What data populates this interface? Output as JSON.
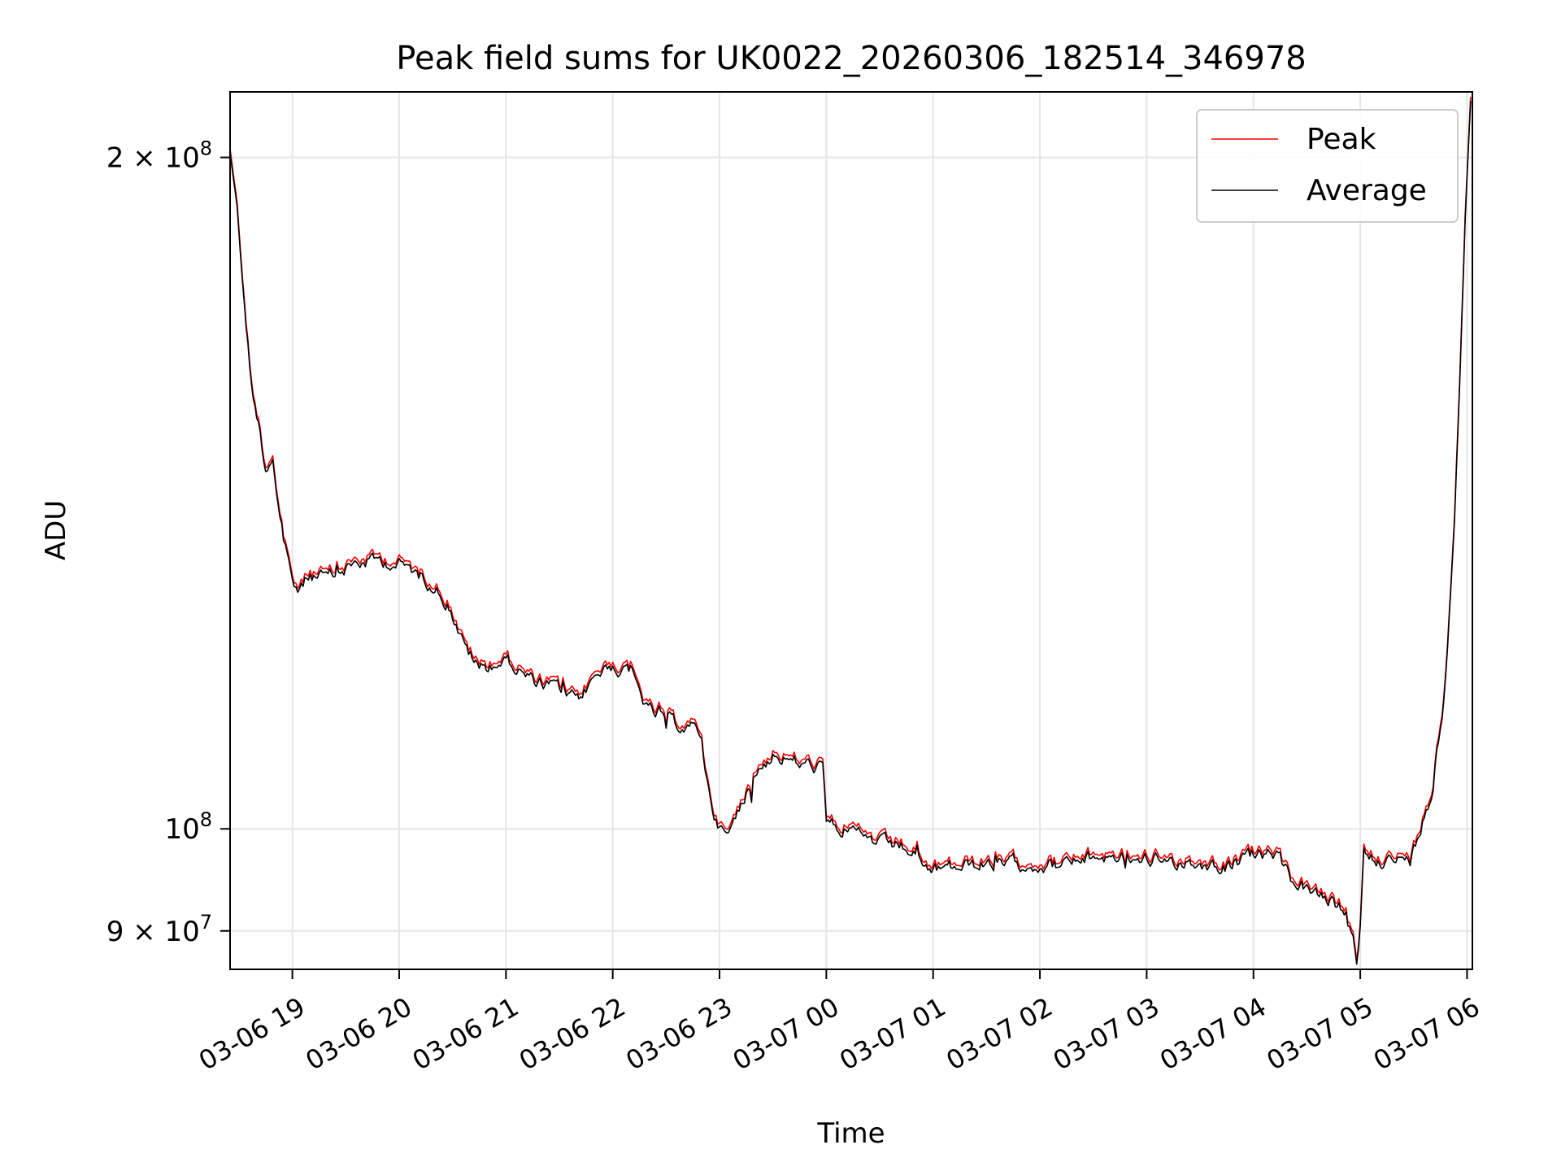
{
  "chart_data": {
    "type": "line",
    "title": "Peak field sums for UK0022_20260306_182514_346978",
    "xlabel": "Time",
    "ylabel": "ADU",
    "xlim": [
      "2026-03-06 18:25",
      "2026-03-07 06:03"
    ],
    "ylim": [
      86500000,
      214000000
    ],
    "yscale": "log",
    "grid": true,
    "legend": "upper right",
    "x_ticks": [
      {
        "t": "2026-03-06 19:00",
        "label": "03-06 19"
      },
      {
        "t": "2026-03-06 20:00",
        "label": "03-06 20"
      },
      {
        "t": "2026-03-06 21:00",
        "label": "03-06 21"
      },
      {
        "t": "2026-03-06 22:00",
        "label": "03-06 22"
      },
      {
        "t": "2026-03-06 23:00",
        "label": "03-06 23"
      },
      {
        "t": "2026-03-07 00:00",
        "label": "03-07 00"
      },
      {
        "t": "2026-03-07 01:00",
        "label": "03-07 01"
      },
      {
        "t": "2026-03-07 02:00",
        "label": "03-07 02"
      },
      {
        "t": "2026-03-07 03:00",
        "label": "03-07 03"
      },
      {
        "t": "2026-03-07 04:00",
        "label": "03-07 04"
      },
      {
        "t": "2026-03-07 05:00",
        "label": "03-07 05"
      },
      {
        "t": "2026-03-07 06:00",
        "label": "03-07 06"
      }
    ],
    "y_ticks": [
      {
        "value": 200000000,
        "mant": "2",
        "exp": "8"
      },
      {
        "value": 100000000,
        "mant": "",
        "exp": "8"
      },
      {
        "value": 90000000,
        "mant": "9",
        "exp": "7"
      }
    ],
    "series": [
      {
        "name": "Peak",
        "color": "#ff0000",
        "offset_ratio": 1.004
      },
      {
        "name": "Average",
        "color": "#000000",
        "points": [
          [
            "2026-03-06 18:25",
            201000000
          ],
          [
            "2026-03-06 18:29",
            190000000
          ],
          [
            "2026-03-06 18:33",
            172000000
          ],
          [
            "2026-03-06 18:37",
            158000000
          ],
          [
            "2026-03-06 18:41",
            152000000
          ],
          [
            "2026-03-06 18:45",
            145000000
          ],
          [
            "2026-03-06 18:49",
            147000000
          ],
          [
            "2026-03-06 18:52",
            140000000
          ],
          [
            "2026-03-06 18:55",
            134000000
          ],
          [
            "2026-03-06 18:59",
            130000000
          ],
          [
            "2026-03-06 19:03",
            128000000
          ],
          [
            "2026-03-06 19:10",
            130000000
          ],
          [
            "2026-03-06 19:20",
            129500000
          ],
          [
            "2026-03-06 19:35",
            131500000
          ],
          [
            "2026-03-06 19:50",
            132000000
          ],
          [
            "2026-03-06 20:05",
            131000000
          ],
          [
            "2026-03-06 20:20",
            128500000
          ],
          [
            "2026-03-06 20:28",
            126000000
          ],
          [
            "2026-03-06 20:36",
            121000000
          ],
          [
            "2026-03-06 20:45",
            118000000
          ],
          [
            "2026-03-06 21:00",
            119000000
          ],
          [
            "2026-03-06 21:15",
            116500000
          ],
          [
            "2026-03-06 21:30",
            115500000
          ],
          [
            "2026-03-06 21:40",
            114000000
          ],
          [
            "2026-03-06 21:50",
            117000000
          ],
          [
            "2026-03-06 22:00",
            118500000
          ],
          [
            "2026-03-06 22:10",
            117500000
          ],
          [
            "2026-03-06 22:20",
            113000000
          ],
          [
            "2026-03-06 22:35",
            111500000
          ],
          [
            "2026-03-06 22:50",
            110500000
          ],
          [
            "2026-03-06 22:52",
            106000000
          ],
          [
            "2026-03-06 22:58",
            101000000
          ],
          [
            "2026-03-06 23:04",
            99000000
          ],
          [
            "2026-03-06 23:10",
            101500000
          ],
          [
            "2026-03-06 23:20",
            106000000
          ],
          [
            "2026-03-06 23:30",
            108000000
          ],
          [
            "2026-03-06 23:45",
            107000000
          ],
          [
            "2026-03-06 23:58",
            106500000
          ],
          [
            "2026-03-07 00:00",
            100500000
          ],
          [
            "2026-03-07 00:15",
            99500000
          ],
          [
            "2026-03-07 00:30",
            98500000
          ],
          [
            "2026-03-07 00:45",
            98000000
          ],
          [
            "2026-03-07 00:58",
            95800000
          ],
          [
            "2026-03-07 01:20",
            96300000
          ],
          [
            "2026-03-07 01:45",
            96500000
          ],
          [
            "2026-03-07 02:10",
            96300000
          ],
          [
            "2026-03-07 02:35",
            97200000
          ],
          [
            "2026-03-07 03:00",
            97000000
          ],
          [
            "2026-03-07 03:25",
            96600000
          ],
          [
            "2026-03-07 03:45",
            96200000
          ],
          [
            "2026-03-07 04:00",
            97200000
          ],
          [
            "2026-03-07 04:12",
            97500000
          ],
          [
            "2026-03-07 04:22",
            94800000
          ],
          [
            "2026-03-07 04:35",
            93400000
          ],
          [
            "2026-03-07 04:50",
            92000000
          ],
          [
            "2026-03-07 04:56",
            89000000
          ],
          [
            "2026-03-07 04:58",
            87200000
          ],
          [
            "2026-03-07 05:00",
            90500000
          ],
          [
            "2026-03-07 05:02",
            97500000
          ],
          [
            "2026-03-07 05:15",
            96800000
          ],
          [
            "2026-03-07 05:28",
            96800000
          ],
          [
            "2026-03-07 05:34",
            100000000
          ],
          [
            "2026-03-07 05:40",
            104000000
          ],
          [
            "2026-03-07 05:46",
            112000000
          ],
          [
            "2026-03-07 05:50",
            124000000
          ],
          [
            "2026-03-07 05:53",
            138000000
          ],
          [
            "2026-03-07 05:56",
            160000000
          ],
          [
            "2026-03-07 05:59",
            188000000
          ],
          [
            "2026-03-07 06:02",
            212000000
          ]
        ]
      }
    ]
  }
}
